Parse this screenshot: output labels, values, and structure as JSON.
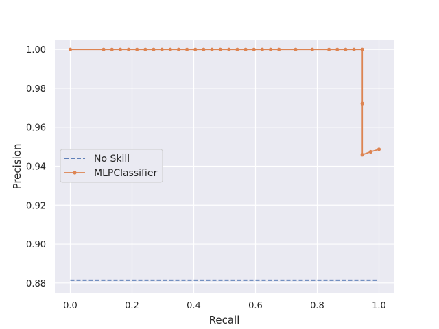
{
  "chart_data": {
    "type": "line",
    "xlabel": "Recall",
    "ylabel": "Precision",
    "xlim": [
      -0.05,
      1.05
    ],
    "ylim": [
      0.875,
      1.005
    ],
    "xticks": [
      0.0,
      0.2,
      0.4,
      0.6,
      0.8,
      1.0
    ],
    "xtick_labels": [
      "0.0",
      "0.2",
      "0.4",
      "0.6",
      "0.8",
      "1.0"
    ],
    "yticks": [
      0.88,
      0.9,
      0.92,
      0.94,
      0.96,
      0.98,
      1.0
    ],
    "ytick_labels": [
      "0.88",
      "0.90",
      "0.92",
      "0.94",
      "0.96",
      "0.98",
      "1.00"
    ],
    "grid": true,
    "legend_position": "center-left",
    "series": [
      {
        "name": "No Skill",
        "style": "dashed",
        "marker": "none",
        "color": "#4c72b0",
        "x": [
          0.0,
          1.0
        ],
        "y": [
          0.8814,
          0.8814
        ]
      },
      {
        "name": "MLPClassifier",
        "style": "solid",
        "marker": "dot",
        "color": "#dd8452",
        "x": [
          0.0,
          0.108,
          0.135,
          0.162,
          0.189,
          0.216,
          0.243,
          0.27,
          0.297,
          0.324,
          0.351,
          0.378,
          0.405,
          0.432,
          0.459,
          0.486,
          0.514,
          0.541,
          0.568,
          0.595,
          0.622,
          0.649,
          0.676,
          0.73,
          0.784,
          0.838,
          0.865,
          0.892,
          0.919,
          0.946,
          0.946,
          0.946,
          0.973,
          1.0
        ],
        "y": [
          1.0,
          1.0,
          1.0,
          1.0,
          1.0,
          1.0,
          1.0,
          1.0,
          1.0,
          1.0,
          1.0,
          1.0,
          1.0,
          1.0,
          1.0,
          1.0,
          1.0,
          1.0,
          1.0,
          1.0,
          1.0,
          1.0,
          1.0,
          1.0,
          1.0,
          1.0,
          1.0,
          1.0,
          1.0,
          1.0,
          0.9722,
          0.9459,
          0.9474,
          0.9487
        ]
      }
    ]
  },
  "colors": {
    "plot_background": "#eaeaf2",
    "grid": "#ffffff",
    "text": "#262626"
  }
}
